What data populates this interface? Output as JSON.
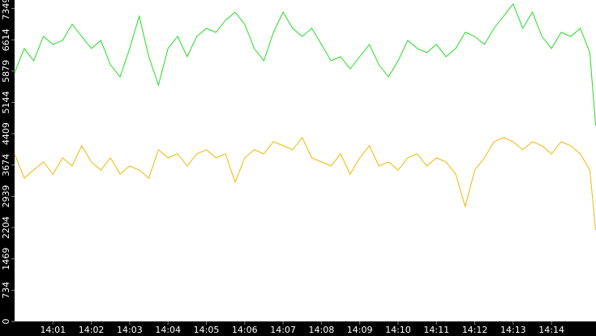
{
  "chart_data": {
    "type": "line",
    "x": [
      0,
      0.25,
      0.5,
      0.75,
      1,
      1.25,
      1.5,
      1.75,
      2,
      2.25,
      2.5,
      2.75,
      3,
      3.25,
      3.5,
      3.75,
      4,
      4.25,
      4.5,
      4.75,
      5,
      5.25,
      5.5,
      5.75,
      6,
      6.25,
      6.5,
      6.75,
      7,
      7.25,
      7.5,
      7.75,
      8,
      8.25,
      8.5,
      8.75,
      9,
      9.25,
      9.5,
      9.75,
      10,
      10.25,
      10.5,
      10.75,
      11,
      11.25,
      11.5,
      11.75,
      12,
      12.25,
      12.5,
      12.75,
      13,
      13.25,
      13.5,
      13.75,
      14,
      14.25,
      14.5,
      14.75,
      15,
      15.15
    ],
    "series": [
      {
        "color": "#22dd22",
        "values": [
          5839,
          6410,
          6124,
          6695,
          6505,
          6600,
          6980,
          6695,
          6410,
          6600,
          6029,
          5744,
          6410,
          7170,
          6219,
          5554,
          6410,
          6695,
          6219,
          6695,
          6885,
          6790,
          7075,
          7265,
          6980,
          6410,
          6124,
          6790,
          7265,
          6885,
          6695,
          6885,
          6505,
          6124,
          6219,
          5934,
          6219,
          6505,
          6029,
          5744,
          6124,
          6600,
          6410,
          6315,
          6505,
          6219,
          6410,
          6790,
          6695,
          6505,
          6885,
          7170,
          7456,
          6885,
          7265,
          6695,
          6410,
          6790,
          6695,
          6885,
          6315,
          4600
        ]
      },
      {
        "color": "#f0b800",
        "values": [
          3937,
          3367,
          3557,
          3747,
          3462,
          3842,
          3652,
          4127,
          3747,
          3557,
          3842,
          3462,
          3652,
          3557,
          3367,
          4032,
          3842,
          3937,
          3652,
          3937,
          4032,
          3842,
          3937,
          3271,
          3842,
          4032,
          3937,
          4222,
          4127,
          4032,
          4318,
          3842,
          3747,
          3652,
          3937,
          3462,
          3842,
          4127,
          3652,
          3747,
          3557,
          3842,
          3937,
          3652,
          3842,
          3747,
          3462,
          2701,
          3557,
          3842,
          4222,
          4318,
          4222,
          4032,
          4222,
          4127,
          3937,
          4222,
          4127,
          3937,
          3557,
          2150
        ]
      }
    ],
    "xlim": [
      0,
      15.16
    ],
    "xticks": [
      {
        "value": 1,
        "label": "14:01"
      },
      {
        "value": 2,
        "label": "14:02"
      },
      {
        "value": 3,
        "label": "14:03"
      },
      {
        "value": 4,
        "label": "14:04"
      },
      {
        "value": 5,
        "label": "14:05"
      },
      {
        "value": 6,
        "label": "14:06"
      },
      {
        "value": 7,
        "label": "14:07"
      },
      {
        "value": 8,
        "label": "14:08"
      },
      {
        "value": 9,
        "label": "14:09"
      },
      {
        "value": 10,
        "label": "14:10"
      },
      {
        "value": 11,
        "label": "14:11"
      },
      {
        "value": 12,
        "label": "14:12"
      },
      {
        "value": 13,
        "label": "14:13"
      },
      {
        "value": 14,
        "label": "14:14"
      }
    ],
    "ylim": [
      0,
      7550
    ],
    "yticks": [
      0,
      734,
      1469,
      2204,
      2939,
      3674,
      4409,
      5144,
      5879,
      6614,
      7349
    ]
  }
}
